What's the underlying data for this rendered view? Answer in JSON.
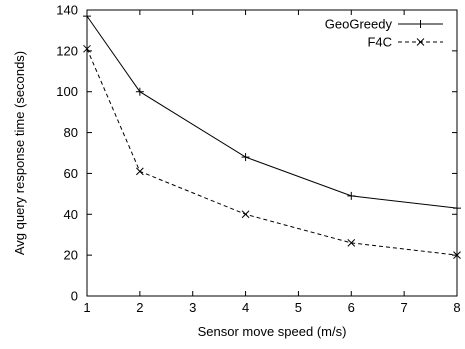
{
  "chart_data": {
    "type": "line",
    "title": "",
    "xlabel": "Sensor move speed (m/s)",
    "ylabel": "Avg query response time (seconds)",
    "xlim": [
      1,
      8
    ],
    "ylim": [
      0,
      140
    ],
    "x_ticks": [
      "1",
      "2",
      "3",
      "4",
      "5",
      "6",
      "7",
      "8"
    ],
    "y_ticks": [
      "0",
      "20",
      "40",
      "60",
      "80",
      "100",
      "120",
      "140"
    ],
    "grid": false,
    "legend_position": "top-right",
    "series": [
      {
        "name": "GeoGreedy",
        "x": [
          1,
          2,
          4,
          6,
          8
        ],
        "values": [
          137,
          100,
          68,
          49,
          43
        ],
        "line_style": "solid",
        "marker": "plus",
        "color": "#000000"
      },
      {
        "name": "F4C",
        "x": [
          1,
          2,
          4,
          6,
          8
        ],
        "values": [
          121,
          61,
          40,
          26,
          20
        ],
        "line_style": "dashed",
        "marker": "x",
        "color": "#000000"
      }
    ]
  }
}
